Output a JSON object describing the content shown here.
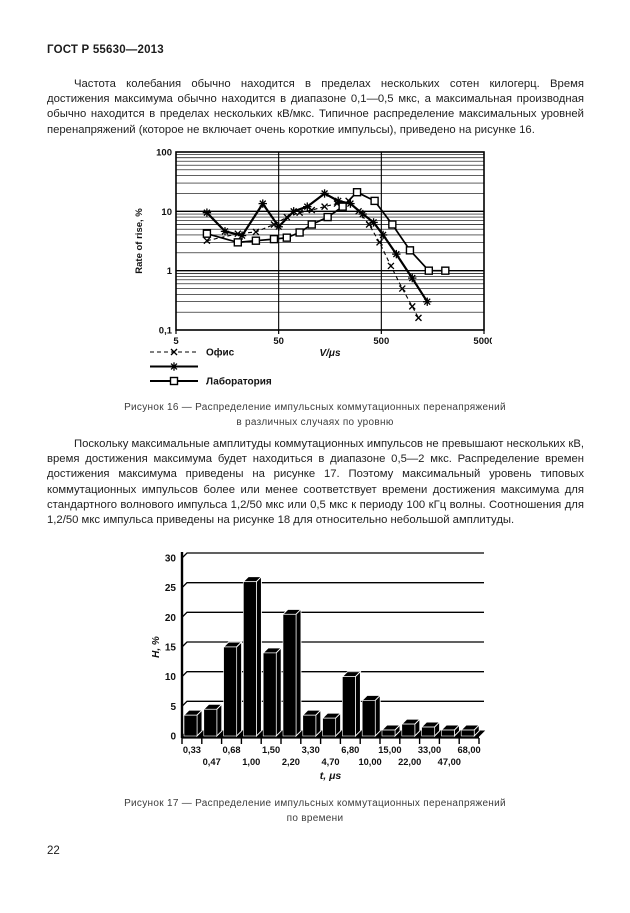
{
  "page": {
    "header": "ГОСТ Р 55630—2013",
    "page_number": "22",
    "paragraph1": "Частота колебания обычно находится в пределах нескольких сотен килогерц. Время достижения максимума обычно находится в диапазоне 0,1—0,5 мкс, а максимальная производная  обычно находится в пределах нескольких кВ/мкс. Типичное распределение максимальных уровней перенапряжений (которое не включает очень короткие импульсы), приведено на рисунке 16.",
    "paragraph2": "Поскольку максимальные амплитуды коммутационных импульсов не превышают нескольких кВ, время достижения максимума будет находиться в диапазоне 0,5—2 мкс. Распределение времен достижения максимума приведены на рисунке 17. Поэтому максимальный уровень  типовых коммутационных импульсов более или менее соответствует времени достижения максимума для стандартного волнового импульса 1,2/50 мкс  или 0,5 мкс к периоду 100 кГц волны. Соотношения для 1,2/50 мкс импульса приведены на рисунке 18 для относительно небольшой амплитуды.",
    "figure16_caption": {
      "line1": "Рисунок 16 — Распределение импульсных коммутационных перенапряжений",
      "line2": "в различных случаях по уровню"
    },
    "figure17_caption": {
      "line1": "Рисунок 17 — Распределение импульсных коммутационных перенапряжений",
      "line2": "по времени"
    }
  },
  "colors": {
    "ink": "#111111",
    "paper": "#ffffff"
  },
  "chart_data": [
    {
      "type": "line",
      "title": "",
      "xlabel": "V/μs",
      "ylabel": "Rate of rise, %",
      "xscale": "log",
      "yscale": "log",
      "xlim": [
        5,
        5000
      ],
      "ylim": [
        0.1,
        100
      ],
      "xtick_values": [
        5,
        50,
        500,
        5000
      ],
      "xtick_labels": [
        "5",
        "50",
        "500",
        "5000"
      ],
      "ytick_values": [
        0.1,
        1,
        10,
        100
      ],
      "ytick_labels": [
        "0,1",
        "1",
        "10",
        "100"
      ],
      "grid": "horizontal log minor gridlines; vertical gridlines at 50 and 500",
      "legend_position": "below-left",
      "series": [
        {
          "name": "Офис",
          "marker": "x",
          "line": "dashed",
          "points": [
            [
              10,
              3.2
            ],
            [
              20,
              4.2
            ],
            [
              30,
              4.5
            ],
            [
              45,
              6
            ],
            [
              60,
              8
            ],
            [
              80,
              9.5
            ],
            [
              105,
              10.5
            ],
            [
              140,
              12
            ],
            [
              185,
              13.5
            ],
            [
              240,
              15
            ],
            [
              300,
              10
            ],
            [
              380,
              6
            ],
            [
              480,
              3
            ],
            [
              620,
              1.2
            ],
            [
              800,
              0.5
            ],
            [
              1000,
              0.25
            ],
            [
              1150,
              0.16
            ]
          ]
        },
        {
          "name": "",
          "marker": "asterisk",
          "line": "solid",
          "points": [
            [
              10,
              9.5
            ],
            [
              15,
              4.6
            ],
            [
              22,
              3.9
            ],
            [
              35,
              13.5
            ],
            [
              50,
              5.5
            ],
            [
              70,
              10
            ],
            [
              95,
              12
            ],
            [
              140,
              20
            ],
            [
              190,
              15
            ],
            [
              250,
              13.5
            ],
            [
              330,
              9
            ],
            [
              420,
              6.5
            ],
            [
              520,
              4
            ],
            [
              700,
              1.9
            ],
            [
              1000,
              0.75
            ],
            [
              1400,
              0.3
            ]
          ]
        },
        {
          "name": "Лаборатория",
          "marker": "square",
          "line": "solid",
          "points": [
            [
              10,
              4.2
            ],
            [
              20,
              3
            ],
            [
              30,
              3.2
            ],
            [
              45,
              3.4
            ],
            [
              60,
              3.6
            ],
            [
              80,
              4.4
            ],
            [
              105,
              6
            ],
            [
              150,
              8
            ],
            [
              210,
              12
            ],
            [
              290,
              21
            ],
            [
              430,
              15
            ],
            [
              640,
              6
            ],
            [
              950,
              2.2
            ],
            [
              1450,
              1
            ],
            [
              2100,
              1
            ]
          ]
        }
      ]
    },
    {
      "type": "bar",
      "style": "3d",
      "title": "",
      "xlabel": "t, μs",
      "ylabel": "H, %",
      "ylim": [
        0,
        30
      ],
      "ytick_values": [
        0,
        5,
        10,
        15,
        20,
        25,
        30
      ],
      "ytick_labels": [
        "0",
        "5",
        "10",
        "15",
        "20",
        "25",
        "30"
      ],
      "categories": [
        "0,33",
        "0,47",
        "0,68",
        "1,00",
        "1,50",
        "2,20",
        "3,30",
        "4,70",
        "6,80",
        "10,00",
        "15,00",
        "22,00",
        "33,00",
        "47,00",
        "68,00"
      ],
      "values": [
        3.5,
        4.5,
        15,
        26,
        14,
        20.5,
        3.5,
        3,
        10,
        6,
        1,
        2,
        1.5,
        1,
        1
      ],
      "bar_color": "#000000",
      "grid": "horizontal gridlines every 5"
    }
  ]
}
